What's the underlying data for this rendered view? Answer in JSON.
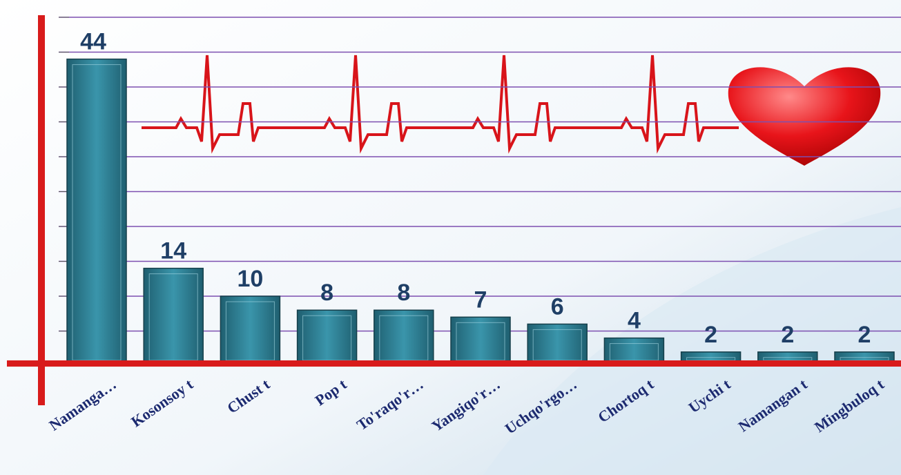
{
  "chart_data": {
    "type": "bar",
    "categories": [
      "Namanga…",
      "Kosonsoy t",
      "Chust t",
      "Pop t",
      "To'raqo'r…",
      "Yangiqo'r…",
      "Uchqo'rgo…",
      "Chortoq t",
      "Uychi t",
      "Namangan t",
      "Mingbuloq t"
    ],
    "values": [
      44,
      14,
      10,
      8,
      8,
      7,
      6,
      4,
      2,
      2,
      2
    ],
    "color": "#2e7f95",
    "value_label_color": "#1f3f66",
    "ylim": [
      0,
      50
    ],
    "yticks": [
      0,
      5,
      10,
      15,
      20,
      25,
      30,
      35,
      40,
      45,
      50
    ],
    "grid": true,
    "grid_color": "#7d4fb0"
  }
}
